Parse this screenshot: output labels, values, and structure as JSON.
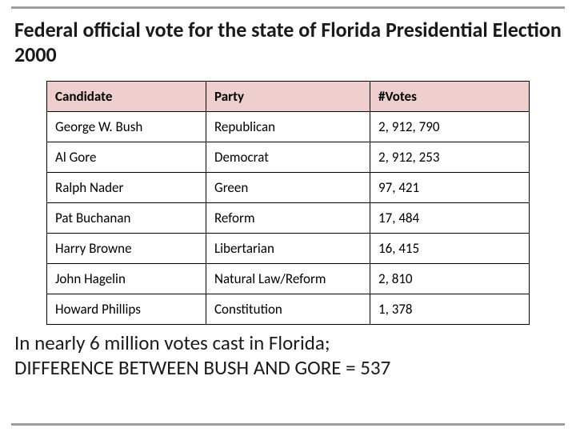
{
  "title": "Federal official vote for the state of Florida Presidential Election 2000",
  "table": {
    "header_bg": "#eecfce",
    "border_color": "#000000",
    "columns": [
      "Candidate",
      "Party",
      "#Votes"
    ],
    "rows": [
      [
        "George W. Bush",
        "Republican",
        "2, 912, 790"
      ],
      [
        "Al Gore",
        "Democrat",
        "2, 912, 253"
      ],
      [
        "Ralph Nader",
        "Green",
        "97, 421"
      ],
      [
        "Pat Buchanan",
        "Reform",
        "17, 484"
      ],
      [
        "Harry Browne",
        "Libertarian",
        "16, 415"
      ],
      [
        "John Hagelin",
        "Natural Law/Reform",
        "2, 810"
      ],
      [
        "Howard Phillips",
        "Constitution",
        "1, 378"
      ]
    ]
  },
  "footer_line1": "In nearly 6 million votes cast in Florida;",
  "footer_line2": "DIFFERENCE BETWEEN BUSH AND GORE = 537",
  "rule_color": "#9e9e9e",
  "background": "#ffffff"
}
